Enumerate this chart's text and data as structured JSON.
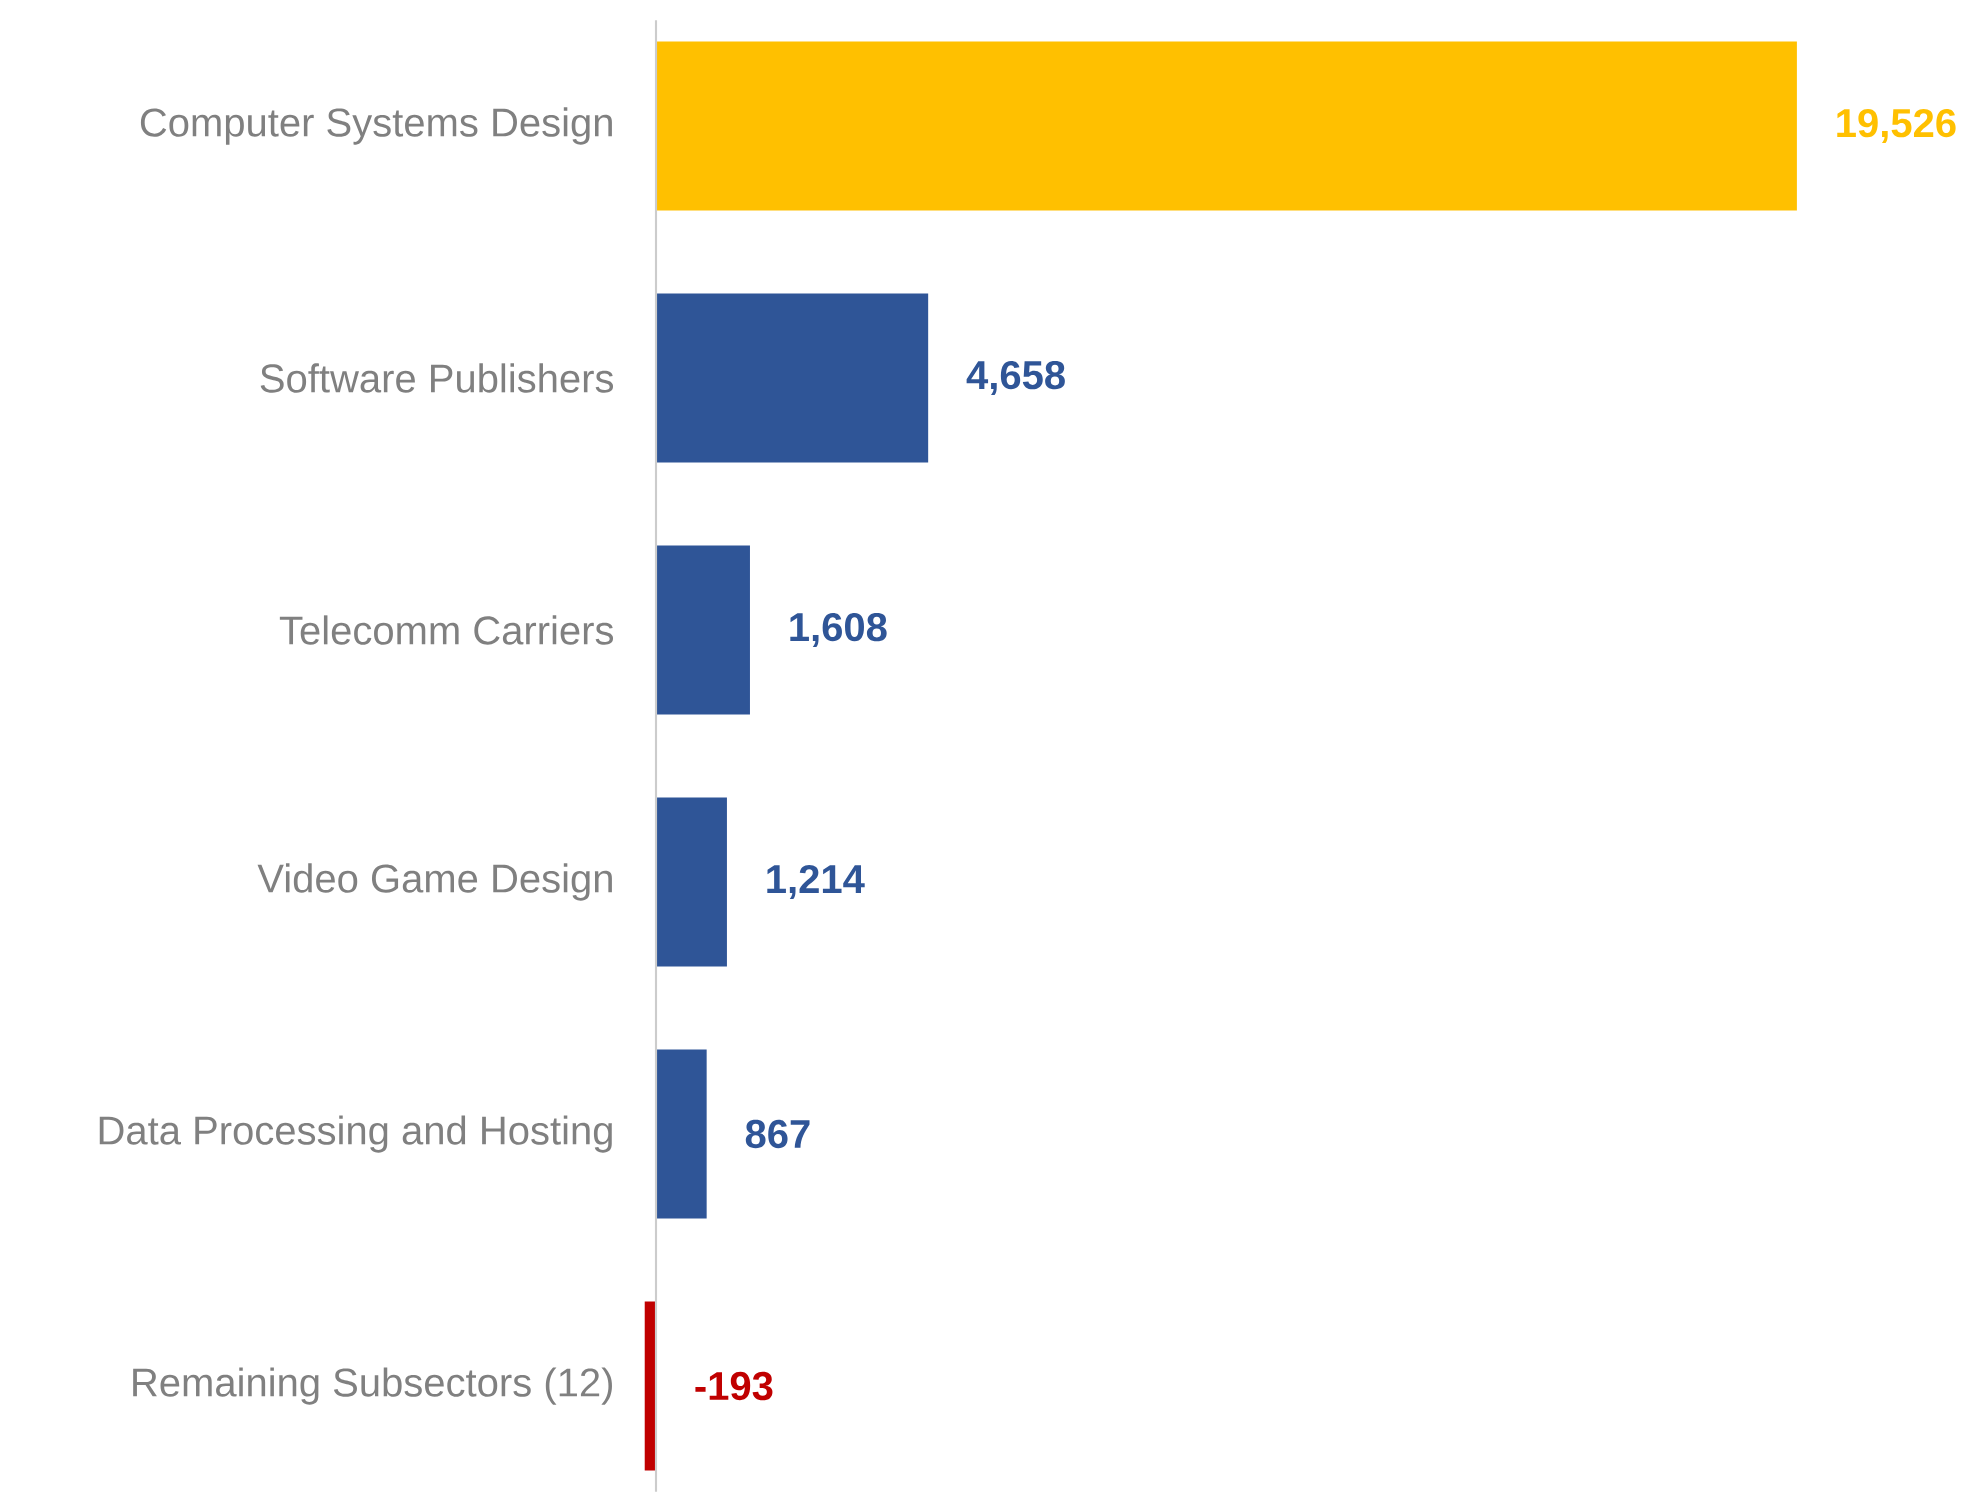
{
  "chart_data": {
    "type": "bar",
    "orientation": "horizontal",
    "categories": [
      "Computer Systems Design",
      "Software Publishers",
      "Telecomm Carriers",
      "Video Game Design",
      "Data Processing and Hosting",
      "Remaining Subsectors (12)"
    ],
    "values": [
      19526,
      4658,
      1608,
      1214,
      867,
      -193
    ],
    "colors": [
      "#ffc000",
      "#2f5597",
      "#2f5597",
      "#2f5597",
      "#2f5597",
      "#c00000"
    ],
    "value_labels": [
      "19,526",
      "4,658",
      "1,608",
      "1,214",
      "867",
      "-193"
    ]
  }
}
